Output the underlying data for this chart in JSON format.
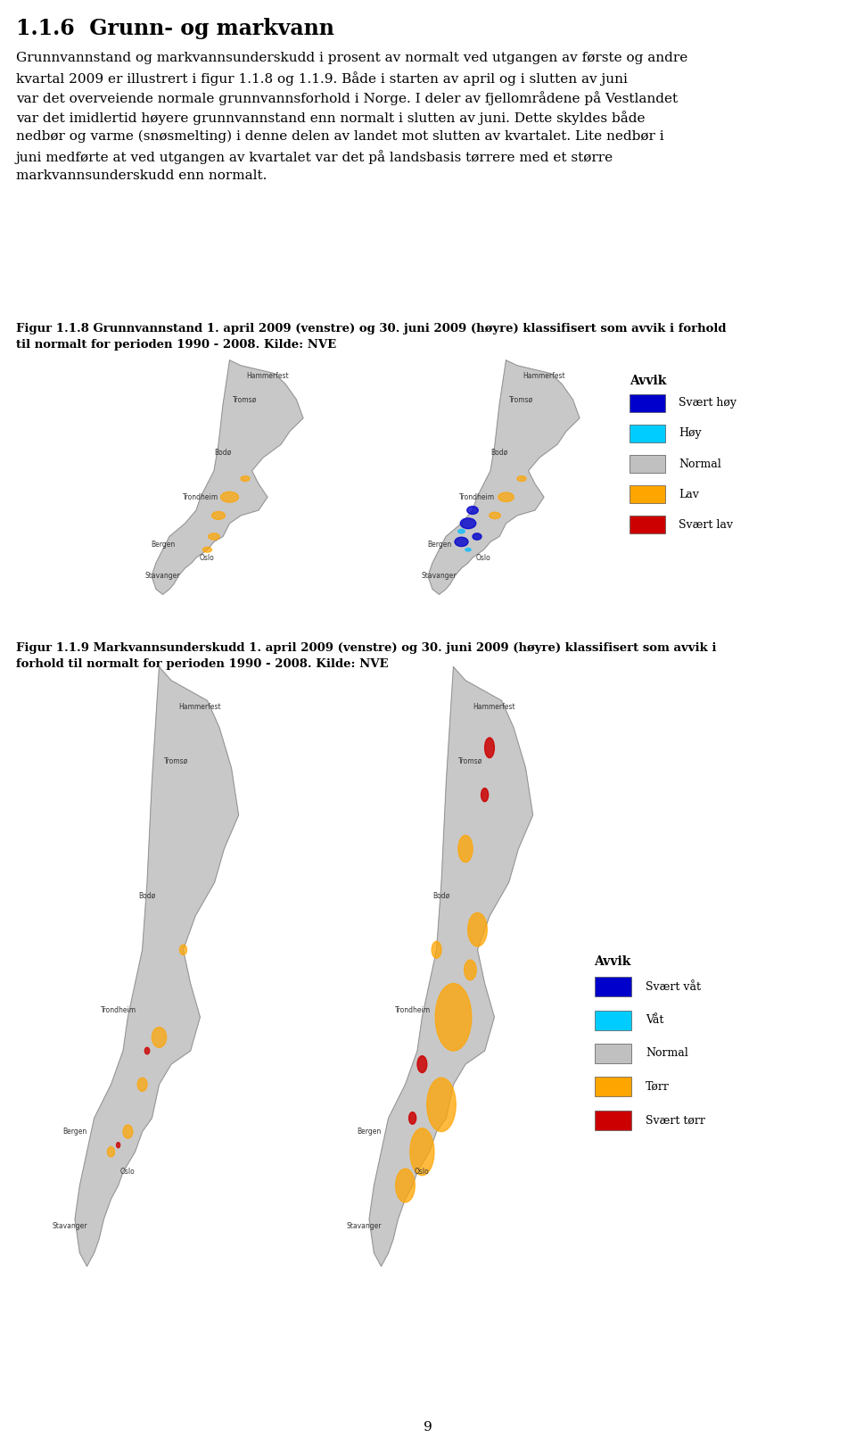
{
  "title": "1.1.6  Grunn- og markvann",
  "body_text": "Grunnvannstand og markvannsunderskudd i prosent av normalt ved utgangen av første og andre kvartal 2009 er illustrert i figur 1.1.8 og 1.1.9. Både i starten av april og i slutten av juni var det overveiende normale grunnvannsforhold i Norge. I deler av fjellområdene på Vestlandet var det imidlertid høyere grunnvannstand enn normalt i slutten av juni. Dette skyldes både nedbør og varme (snøsmelting) i denne delen av landet mot slutten av kvartalet. Lite nedbør i juni medførte at ved utgangen av kvartalet var det på landsbasis tørrere med et større markvannsunderskudd enn normalt.",
  "fig118_caption": "Figur 1.1.8 Grunnvannstand 1. april 2009 (venstre) og 30. juni 2009 (høyre) klassifisert som avvik i forhold til normalt for perioden 1990 - 2008. Kilde: NVE",
  "fig119_caption": "Figur 1.1.9 Markvannsunderskudd 1. april 2009 (venstre) og 30. juni 2009 (høyre) klassifisert som avvik i forhold til normalt for perioden 1990 - 2008. Kilde: NVE",
  "legend118_title": "Avvik",
  "legend118_items": [
    "Svært høy",
    "Høy",
    "Normal",
    "Lav",
    "Svært lav"
  ],
  "legend118_colors": [
    "#0000CC",
    "#00CCFF",
    "#C0C0C0",
    "#FFA500",
    "#CC0000"
  ],
  "legend119_title": "Avvik",
  "legend119_items": [
    "Svært våt",
    "Våt",
    "Normal",
    "Tørr",
    "Svært tørr"
  ],
  "legend119_colors": [
    "#0000CC",
    "#00CCFF",
    "#C0C0C0",
    "#FFA500",
    "#CC0000"
  ],
  "page_number": "9",
  "bg_color": "#FFFFFF",
  "text_color": "#000000",
  "title_fontsize": 16,
  "body_fontsize": 11,
  "caption_fontsize": 9.5,
  "map_bg": "#E8E8E8",
  "map_outline": "#AAAAAA"
}
